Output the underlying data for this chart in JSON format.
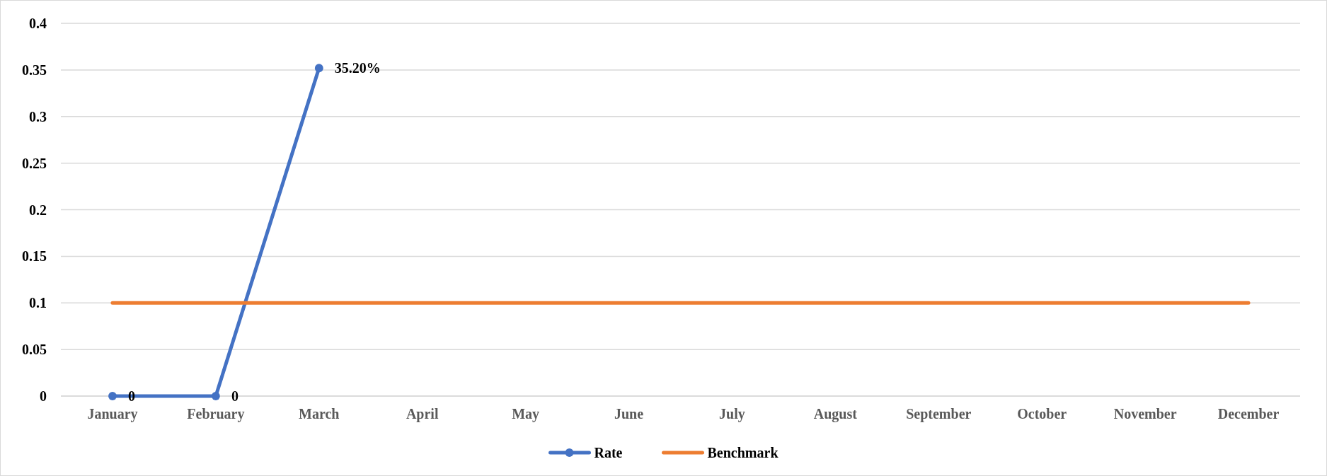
{
  "chart_data": {
    "type": "line",
    "categories": [
      "January",
      "February",
      "March",
      "April",
      "May",
      "June",
      "July",
      "August",
      "September",
      "October",
      "November",
      "December"
    ],
    "series": [
      {
        "name": "Rate",
        "color": "#4472c4",
        "marker": "circle",
        "values": [
          0,
          0,
          0.352,
          null,
          null,
          null,
          null,
          null,
          null,
          null,
          null,
          null
        ],
        "value_labels": [
          "0",
          "0",
          "35.20%",
          null,
          null,
          null,
          null,
          null,
          null,
          null,
          null,
          null
        ]
      },
      {
        "name": "Benchmark",
        "color": "#ed7d31",
        "marker": "none",
        "values": [
          0.1,
          0.1,
          0.1,
          0.1,
          0.1,
          0.1,
          0.1,
          0.1,
          0.1,
          0.1,
          0.1,
          0.1
        ]
      }
    ],
    "ylim": [
      0,
      0.4
    ],
    "yticks": [
      0,
      0.05,
      0.1,
      0.15,
      0.2,
      0.25,
      0.3,
      0.35,
      0.4
    ],
    "grid": "y",
    "legend": "bottom"
  }
}
